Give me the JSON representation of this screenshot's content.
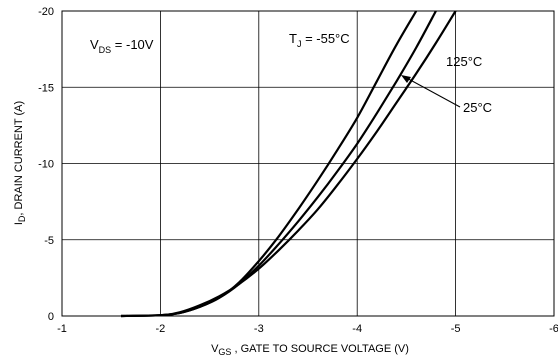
{
  "chart_data": {
    "type": "line",
    "title": "",
    "xlabel": {
      "main": "V",
      "sub": "GS",
      "rest": " , GATE TO SOURCE VOLTAGE (V)"
    },
    "ylabel": {
      "main": "I",
      "sub": "D",
      "rest": ", DRAIN CURRENT (A)"
    },
    "xlim": [
      -1,
      -6
    ],
    "ylim": [
      0,
      -20
    ],
    "x_ticks": [
      -1,
      -2,
      -3,
      -4,
      -5,
      -6
    ],
    "y_ticks": [
      0,
      -5,
      -10,
      -15,
      -20
    ],
    "x_tick_labels": [
      "-1",
      "-2",
      "-3",
      "-4",
      "-5",
      "-6"
    ],
    "y_tick_labels": [
      "0",
      "-5",
      "-10",
      "-15",
      "-20"
    ],
    "grid": true,
    "annotations": {
      "vds": {
        "main": "V",
        "sub": "DS",
        "rest": " = -10V"
      },
      "tj": {
        "main": "T",
        "sub": "J",
        "rest": " = -55°C"
      },
      "t125": "125°C",
      "t25": "25°C"
    },
    "series": [
      {
        "name": "-55°C",
        "x": [
          -1.6,
          -2.0,
          -2.2,
          -2.4,
          -2.6,
          -2.8,
          -3.0,
          -3.2,
          -3.4,
          -3.6,
          -3.8,
          -4.0,
          -4.2,
          -4.4,
          -4.6
        ],
        "y": [
          0,
          -0.05,
          -0.2,
          -0.6,
          -1.2,
          -2.2,
          -3.6,
          -5.2,
          -7.0,
          -8.9,
          -10.9,
          -13.0,
          -15.4,
          -17.8,
          -20.0
        ]
      },
      {
        "name": "25°C",
        "x": [
          -1.6,
          -2.0,
          -2.2,
          -2.4,
          -2.6,
          -2.8,
          -3.0,
          -3.2,
          -3.4,
          -3.6,
          -3.8,
          -4.0,
          -4.2,
          -4.4,
          -4.6,
          -4.8
        ],
        "y": [
          0,
          -0.05,
          -0.2,
          -0.6,
          -1.2,
          -2.1,
          -3.3,
          -4.7,
          -6.2,
          -7.8,
          -9.5,
          -11.3,
          -13.3,
          -15.4,
          -17.6,
          -20.0
        ]
      },
      {
        "name": "125°C",
        "x": [
          -1.6,
          -2.0,
          -2.2,
          -2.4,
          -2.6,
          -2.8,
          -3.0,
          -3.2,
          -3.4,
          -3.6,
          -3.8,
          -4.0,
          -4.2,
          -4.4,
          -4.6,
          -4.8,
          -5.0
        ],
        "y": [
          0,
          -0.05,
          -0.25,
          -0.7,
          -1.3,
          -2.1,
          -3.1,
          -4.3,
          -5.6,
          -7.0,
          -8.6,
          -10.3,
          -12.1,
          -14.0,
          -15.9,
          -17.9,
          -20.0
        ]
      }
    ]
  }
}
